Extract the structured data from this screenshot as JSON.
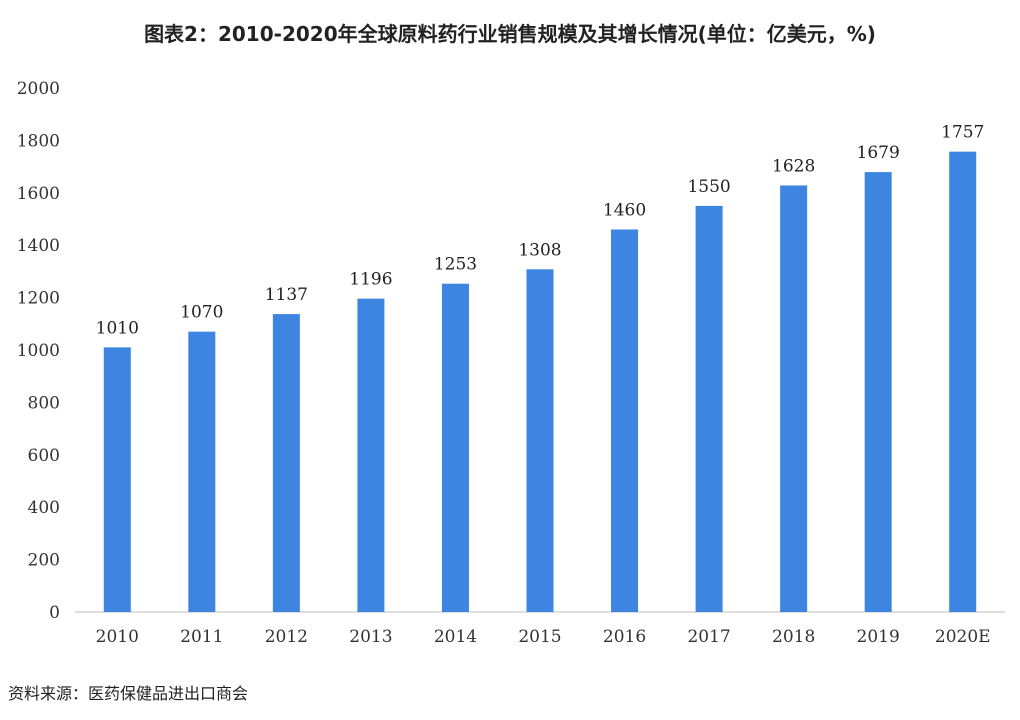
{
  "title": "图表2：2010-2020年全球原料药行业销售规模及其增长情况(单位：亿美元，%)",
  "source": "资料来源：医药保健品进出口商会",
  "colors": {
    "bar": "#3d85e0",
    "axis": "#bfbfbf"
  },
  "chart_data": {
    "type": "bar",
    "title": "图表2：2010-2020年全球原料药行业销售规模及其增长情况(单位：亿美元，%)",
    "categories": [
      "2010",
      "2011",
      "2012",
      "2013",
      "2014",
      "2015",
      "2016",
      "2017",
      "2018",
      "2019",
      "2020E"
    ],
    "values": [
      1010,
      1070,
      1137,
      1196,
      1253,
      1308,
      1460,
      1550,
      1628,
      1679,
      1757
    ],
    "xlabel": "",
    "ylabel": "",
    "ylim": [
      0,
      2000
    ],
    "yticks": [
      0,
      200,
      400,
      600,
      800,
      1000,
      1200,
      1400,
      1600,
      1800,
      2000
    ],
    "grid": false,
    "data_labels": true
  }
}
